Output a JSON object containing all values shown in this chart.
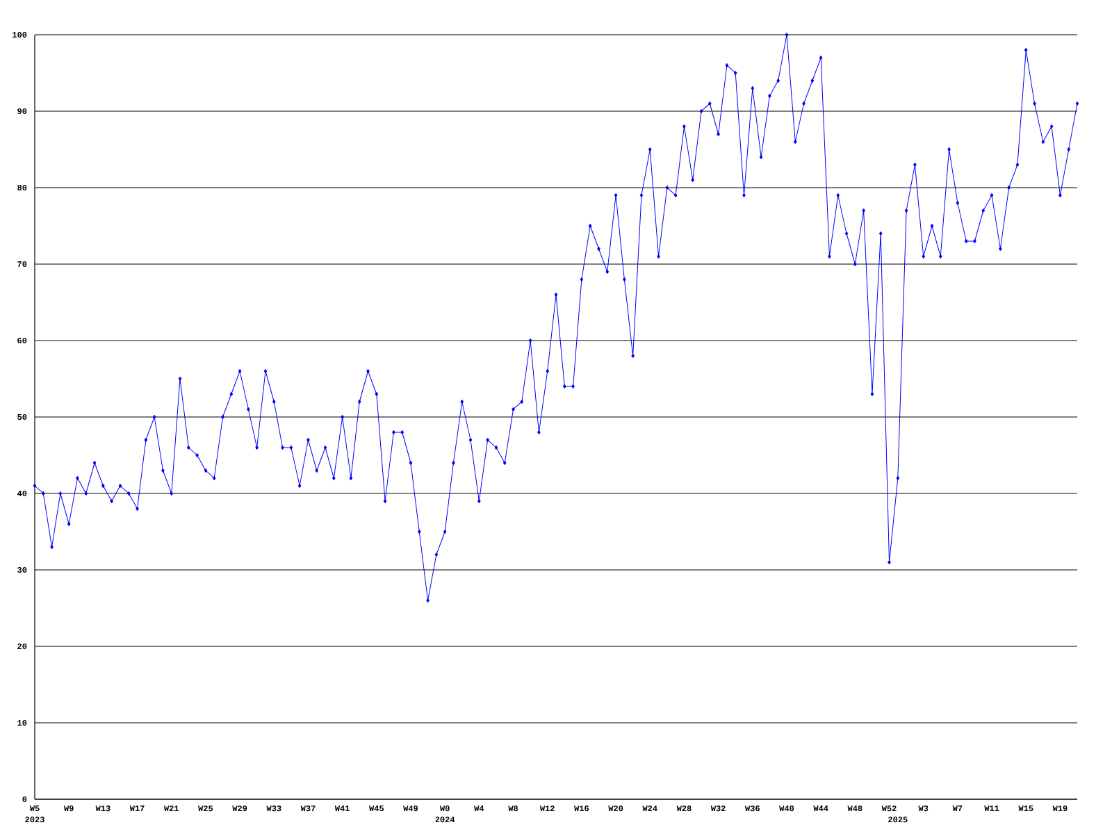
{
  "chart_data": {
    "type": "line",
    "x": [
      "2023-01-30",
      "2023-02-06",
      "2023-02-13",
      "2023-02-20",
      "2023-02-27",
      "2023-03-06",
      "2023-03-13",
      "2023-03-20",
      "2023-03-27",
      "2023-04-03",
      "2023-04-10",
      "2023-04-17",
      "2023-04-24",
      "2023-05-01",
      "2023-05-08",
      "2023-05-15",
      "2023-05-22",
      "2023-05-29",
      "2023-06-05",
      "2023-06-12",
      "2023-06-19",
      "2023-06-26",
      "2023-07-03",
      "2023-07-10",
      "2023-07-17",
      "2023-07-24",
      "2023-07-31",
      "2023-08-07",
      "2023-08-14",
      "2023-08-21",
      "2023-08-28",
      "2023-09-04",
      "2023-09-11",
      "2023-09-18",
      "2023-09-25",
      "2023-10-02",
      "2023-10-09",
      "2023-10-16",
      "2023-10-23",
      "2023-10-30",
      "2023-11-06",
      "2023-11-13",
      "2023-11-20",
      "2023-11-27",
      "2023-12-04",
      "2023-12-11",
      "2023-12-18",
      "2023-12-25",
      "2024-01-01",
      "2024-01-08",
      "2024-01-15",
      "2024-01-22",
      "2024-01-29",
      "2024-02-05",
      "2024-02-12",
      "2024-02-19",
      "2024-02-26",
      "2024-03-04",
      "2024-03-11",
      "2024-03-18",
      "2024-03-25",
      "2024-04-01",
      "2024-04-08",
      "2024-04-15",
      "2024-04-22",
      "2024-04-29",
      "2024-05-06",
      "2024-05-13",
      "2024-05-20",
      "2024-05-27",
      "2024-06-03",
      "2024-06-10",
      "2024-06-17",
      "2024-06-24",
      "2024-07-01",
      "2024-07-08",
      "2024-07-15",
      "2024-07-22",
      "2024-07-29",
      "2024-08-05",
      "2024-08-12",
      "2024-08-19",
      "2024-08-26",
      "2024-09-02",
      "2024-09-09",
      "2024-09-16",
      "2024-09-23",
      "2024-09-30",
      "2024-10-07",
      "2024-10-14",
      "2024-10-21",
      "2024-10-28",
      "2024-11-04",
      "2024-11-11",
      "2024-11-18",
      "2024-11-25",
      "2024-12-02",
      "2024-12-09",
      "2024-12-16",
      "2024-12-23",
      "2024-12-30",
      "2025-01-06",
      "2025-01-13",
      "2025-01-20",
      "2025-01-27",
      "2025-02-03",
      "2025-02-10",
      "2025-02-17",
      "2025-02-24",
      "2025-03-03",
      "2025-03-10",
      "2025-03-17",
      "2025-03-24",
      "2025-03-31",
      "2025-04-07",
      "2025-04-14",
      "2025-04-21",
      "2025-04-28",
      "2025-05-05",
      "2025-05-12",
      "2025-05-19",
      "2025-05-26",
      "2025-06-02"
    ],
    "values": [
      41,
      40,
      33,
      40,
      36,
      42,
      40,
      44,
      41,
      39,
      41,
      40,
      38,
      47,
      50,
      43,
      40,
      55,
      46,
      45,
      43,
      42,
      50,
      53,
      56,
      51,
      46,
      56,
      52,
      46,
      46,
      41,
      47,
      43,
      46,
      42,
      50,
      42,
      52,
      56,
      53,
      39,
      48,
      48,
      44,
      35,
      26,
      32,
      35,
      44,
      52,
      47,
      39,
      47,
      46,
      44,
      51,
      52,
      60,
      48,
      56,
      66,
      54,
      54,
      68,
      75,
      72,
      69,
      79,
      68,
      58,
      79,
      85,
      71,
      80,
      79,
      88,
      81,
      90,
      91,
      87,
      96,
      95,
      79,
      93,
      84,
      92,
      94,
      100,
      86,
      91,
      94,
      97,
      71,
      79,
      74,
      70,
      77,
      53,
      74,
      31,
      42,
      77,
      83,
      71,
      75,
      71,
      85,
      78,
      73,
      73,
      77,
      79,
      72,
      80,
      83,
      98,
      91,
      86,
      88,
      79,
      85,
      91
    ],
    "color": "#0000ff",
    "marker": "diamond",
    "line_style": "solid",
    "grid": "y",
    "xlim": [
      "2023-01-30",
      "2025-06-02"
    ],
    "xticks": [
      {
        "value": "2023-01-30",
        "label": "W5"
      },
      {
        "value": "2023-02-27",
        "label": "W9"
      },
      {
        "value": "2023-03-27",
        "label": "W13"
      },
      {
        "value": "2023-04-24",
        "label": "W17"
      },
      {
        "value": "2023-05-22",
        "label": "W21"
      },
      {
        "value": "2023-06-19",
        "label": "W25"
      },
      {
        "value": "2023-07-17",
        "label": "W29"
      },
      {
        "value": "2023-08-14",
        "label": "W33"
      },
      {
        "value": "2023-09-11",
        "label": "W37"
      },
      {
        "value": "2023-10-09",
        "label": "W41"
      },
      {
        "value": "2023-11-06",
        "label": "W45"
      },
      {
        "value": "2023-12-04",
        "label": "W49"
      },
      {
        "value": "2024-01-01",
        "label": "W0"
      },
      {
        "value": "2024-01-29",
        "label": "W4"
      },
      {
        "value": "2024-02-26",
        "label": "W8"
      },
      {
        "value": "2024-03-25",
        "label": "W12"
      },
      {
        "value": "2024-04-22",
        "label": "W16"
      },
      {
        "value": "2024-05-20",
        "label": "W20"
      },
      {
        "value": "2024-06-17",
        "label": "W24"
      },
      {
        "value": "2024-07-15",
        "label": "W28"
      },
      {
        "value": "2024-08-12",
        "label": "W32"
      },
      {
        "value": "2024-09-09",
        "label": "W36"
      },
      {
        "value": "2024-10-07",
        "label": "W40"
      },
      {
        "value": "2024-11-04",
        "label": "W44"
      },
      {
        "value": "2024-12-02",
        "label": "W48"
      },
      {
        "value": "2024-12-30",
        "label": "W52"
      },
      {
        "value": "2025-01-27",
        "label": "W3"
      },
      {
        "value": "2025-02-24",
        "label": "W7"
      },
      {
        "value": "2025-03-24",
        "label": "W11"
      },
      {
        "value": "2025-04-21",
        "label": "W15"
      },
      {
        "value": "2025-05-19",
        "label": "W19"
      }
    ],
    "ylim": [
      0,
      100
    ],
    "yticks": [
      0,
      10,
      20,
      30,
      40,
      50,
      60,
      70,
      80,
      90,
      100
    ],
    "x2lim": [
      "2023-01-30",
      "2025-06-02"
    ],
    "x2ticks": [
      {
        "value": "2023-01-30",
        "label": "2023"
      },
      {
        "value": "2024-01-01",
        "label": "2024"
      },
      {
        "value": "2025-01-06",
        "label": "2025"
      }
    ]
  }
}
